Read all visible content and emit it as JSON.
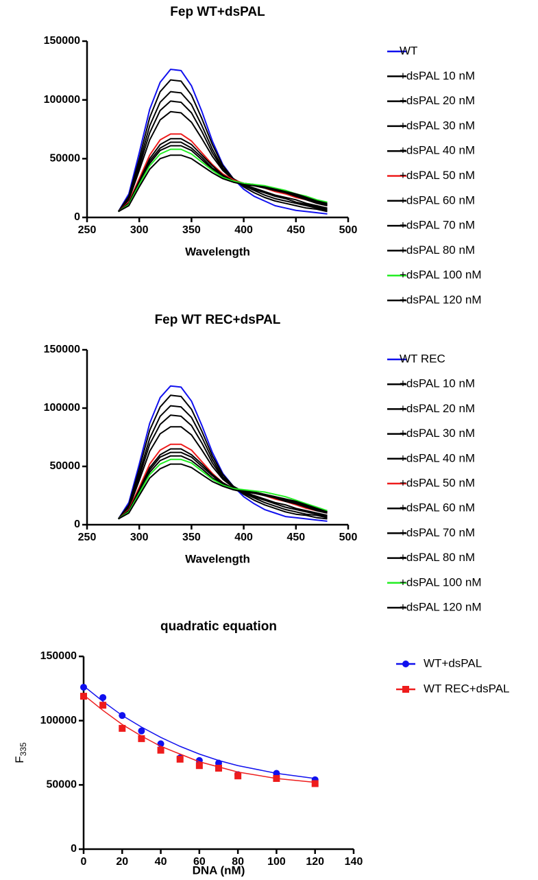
{
  "chart_data": [
    {
      "type": "line",
      "title": "Fep WT+dsPAL",
      "x_label": "Wavelength",
      "xlim": [
        250,
        500
      ],
      "xticks": [
        250,
        300,
        350,
        400,
        450,
        500
      ],
      "ylim": [
        0,
        150000
      ],
      "yticks": [
        0,
        50000,
        100000,
        150000
      ],
      "x": [
        280,
        290,
        300,
        310,
        320,
        330,
        340,
        350,
        360,
        370,
        380,
        390,
        400,
        410,
        420,
        430,
        440,
        450,
        460,
        470,
        480
      ],
      "series": [
        {
          "name": "WT",
          "color": "#1010ee",
          "values": [
            5000,
            20000,
            55000,
            92000,
            115000,
            126000,
            125000,
            112000,
            90000,
            65000,
            45000,
            33000,
            24000,
            18000,
            14000,
            10000,
            8000,
            6000,
            5000,
            4000,
            3000
          ]
        },
        {
          "name": "+dsPAL 10 nM",
          "color": "#000000",
          "values": [
            5000,
            18000,
            50000,
            85000,
            107000,
            117000,
            116000,
            104000,
            84000,
            62000,
            44000,
            33000,
            26000,
            21000,
            17000,
            14000,
            12000,
            10000,
            8000,
            7000,
            5000
          ]
        },
        {
          "name": "+dsPAL 20 nM",
          "color": "#000000",
          "values": [
            5000,
            17000,
            46000,
            78000,
            98000,
            107000,
            106000,
            96000,
            78000,
            58000,
            42000,
            33000,
            27000,
            23000,
            19000,
            16000,
            14000,
            12000,
            10000,
            8000,
            6000
          ]
        },
        {
          "name": "+dsPAL 30 nM",
          "color": "#000000",
          "values": [
            5000,
            16000,
            43000,
            72000,
            91000,
            99000,
            98000,
            89000,
            73000,
            55000,
            41000,
            33000,
            28000,
            24000,
            21000,
            18000,
            16000,
            13000,
            11000,
            9000,
            7000
          ]
        },
        {
          "name": "+dsPAL 40 nM",
          "color": "#000000",
          "values": [
            5000,
            15000,
            40000,
            66000,
            83000,
            90000,
            89000,
            81000,
            67000,
            52000,
            40000,
            32000,
            28000,
            25000,
            22000,
            19000,
            17000,
            15000,
            12000,
            10000,
            8000
          ]
        },
        {
          "name": "+dsPAL 50 nM",
          "color": "#ee1c1c",
          "values": [
            5000,
            13000,
            33000,
            53000,
            66000,
            71000,
            71000,
            65000,
            55000,
            45000,
            37000,
            32000,
            29000,
            27000,
            25000,
            22000,
            20000,
            17000,
            15000,
            12000,
            10000
          ]
        },
        {
          "name": "+dsPAL 60 nM",
          "color": "#000000",
          "values": [
            5000,
            12000,
            31000,
            50000,
            62000,
            67000,
            67000,
            62000,
            53000,
            44000,
            36000,
            31000,
            29000,
            27000,
            25000,
            23000,
            21000,
            18000,
            15000,
            12000,
            10000
          ]
        },
        {
          "name": "+dsPAL 70 nM",
          "color": "#000000",
          "values": [
            5000,
            12000,
            30000,
            48000,
            59000,
            64000,
            64000,
            59000,
            51000,
            42000,
            36000,
            31000,
            29000,
            27000,
            26000,
            24000,
            21000,
            19000,
            16000,
            13000,
            11000
          ]
        },
        {
          "name": "+dsPAL 80 nM",
          "color": "#000000",
          "values": [
            5000,
            11000,
            29000,
            46000,
            57000,
            61000,
            61000,
            57000,
            49000,
            41000,
            35000,
            31000,
            29000,
            28000,
            26000,
            24000,
            22000,
            19000,
            16000,
            14000,
            11000
          ]
        },
        {
          "name": "+dsPAL 100 nM",
          "color": "#22ee22",
          "values": [
            5000,
            11000,
            28000,
            44000,
            54000,
            58000,
            58000,
            54000,
            47000,
            40000,
            34000,
            31000,
            29000,
            28000,
            27000,
            25000,
            23000,
            20000,
            18000,
            15000,
            13000
          ]
        },
        {
          "name": "+dsPAL 120 nM",
          "color": "#000000",
          "values": [
            5000,
            10000,
            26000,
            41000,
            50000,
            53000,
            53000,
            50000,
            44000,
            38000,
            33000,
            30000,
            28000,
            27000,
            26000,
            24000,
            22000,
            20000,
            17000,
            14000,
            12000
          ]
        }
      ]
    },
    {
      "type": "line",
      "title": "Fep WT REC+dsPAL",
      "x_label": "Wavelength",
      "xlim": [
        250,
        500
      ],
      "xticks": [
        250,
        300,
        350,
        400,
        450,
        500
      ],
      "ylim": [
        0,
        150000
      ],
      "yticks": [
        0,
        50000,
        100000,
        150000
      ],
      "x": [
        280,
        290,
        300,
        310,
        320,
        330,
        340,
        350,
        360,
        370,
        380,
        390,
        400,
        410,
        420,
        430,
        440,
        450,
        460,
        470,
        480
      ],
      "series": [
        {
          "name": "WT REC",
          "color": "#1010ee",
          "values": [
            5000,
            19000,
            52000,
            87000,
            109000,
            119000,
            118000,
            106000,
            85000,
            62000,
            44000,
            33000,
            24000,
            18000,
            13000,
            10000,
            7000,
            6000,
            5000,
            4000,
            3000
          ]
        },
        {
          "name": "+dsPAL 10 nM",
          "color": "#000000",
          "values": [
            5000,
            17000,
            48000,
            81000,
            101000,
            111000,
            110000,
            99000,
            80000,
            59000,
            43000,
            33000,
            26000,
            21000,
            17000,
            14000,
            11000,
            9000,
            8000,
            6000,
            5000
          ]
        },
        {
          "name": "+dsPAL 20 nM",
          "color": "#000000",
          "values": [
            5000,
            16000,
            44000,
            74000,
            93000,
            102000,
            101000,
            92000,
            75000,
            56000,
            41000,
            33000,
            27000,
            23000,
            19000,
            16000,
            13000,
            11000,
            9000,
            8000,
            6000
          ]
        },
        {
          "name": "+dsPAL 30 nM",
          "color": "#000000",
          "values": [
            5000,
            15000,
            41000,
            69000,
            86000,
            94000,
            93000,
            85000,
            70000,
            53000,
            40000,
            33000,
            28000,
            24000,
            21000,
            18000,
            15000,
            13000,
            11000,
            9000,
            7000
          ]
        },
        {
          "name": "+dsPAL 40 nM",
          "color": "#000000",
          "values": [
            5000,
            14000,
            38000,
            63000,
            78000,
            84000,
            84000,
            77000,
            64000,
            50000,
            39000,
            32000,
            28000,
            25000,
            22000,
            19000,
            17000,
            14000,
            12000,
            10000,
            8000
          ]
        },
        {
          "name": "+dsPAL 50 nM",
          "color": "#ee1c1c",
          "values": [
            5000,
            13000,
            32000,
            52000,
            64000,
            69000,
            69000,
            64000,
            54000,
            44000,
            36000,
            31000,
            29000,
            27000,
            25000,
            22000,
            20000,
            17000,
            14000,
            12000,
            10000
          ]
        },
        {
          "name": "+dsPAL 60 nM",
          "color": "#000000",
          "values": [
            5000,
            12000,
            30000,
            49000,
            60000,
            65000,
            65000,
            60000,
            52000,
            43000,
            36000,
            31000,
            29000,
            27000,
            25000,
            23000,
            20000,
            18000,
            15000,
            12000,
            10000
          ]
        },
        {
          "name": "+dsPAL 70 nM",
          "color": "#000000",
          "values": [
            5000,
            12000,
            29000,
            47000,
            58000,
            62000,
            62000,
            58000,
            50000,
            42000,
            35000,
            31000,
            29000,
            28000,
            26000,
            24000,
            21000,
            18000,
            16000,
            13000,
            11000
          ]
        },
        {
          "name": "+dsPAL 80 nM",
          "color": "#000000",
          "values": [
            5000,
            11000,
            28000,
            45000,
            55000,
            59000,
            59000,
            55000,
            48000,
            40000,
            35000,
            31000,
            29000,
            28000,
            26000,
            24000,
            22000,
            19000,
            16000,
            14000,
            11000
          ]
        },
        {
          "name": "+dsPAL 100 nM",
          "color": "#22ee22",
          "values": [
            5000,
            11000,
            27000,
            43000,
            52000,
            56000,
            56000,
            53000,
            46000,
            39000,
            34000,
            31000,
            30000,
            29000,
            28000,
            26000,
            24000,
            21000,
            18000,
            15000,
            12000
          ]
        },
        {
          "name": "+dsPAL 120 nM",
          "color": "#000000",
          "values": [
            5000,
            10000,
            25000,
            40000,
            48000,
            52000,
            52000,
            49000,
            43000,
            37000,
            33000,
            30000,
            28000,
            27000,
            26000,
            24000,
            22000,
            20000,
            17000,
            14000,
            11000
          ]
        }
      ]
    },
    {
      "type": "scatter",
      "title": "quadratic equation",
      "x_label": "DNA (nM)",
      "y_label": "F",
      "y_label_sub": "335",
      "xlim": [
        0,
        140
      ],
      "xticks": [
        0,
        20,
        40,
        60,
        80,
        100,
        120,
        140
      ],
      "ylim": [
        0,
        150000
      ],
      "yticks": [
        0,
        50000,
        100000,
        150000
      ],
      "x": [
        0,
        10,
        20,
        30,
        40,
        50,
        60,
        70,
        80,
        100,
        120
      ],
      "series": [
        {
          "name": "WT+dsPAL",
          "color": "#1010ee",
          "marker": "circle",
          "values": [
            126000,
            118000,
            104000,
            92000,
            82000,
            71000,
            69000,
            67000,
            58000,
            59000,
            54000
          ],
          "fit": [
            127000,
            115000,
            104000,
            95000,
            87000,
            80000,
            74000,
            69000,
            65000,
            59000,
            55000
          ]
        },
        {
          "name": "WT REC+dsPAL",
          "color": "#ee1c1c",
          "marker": "square",
          "values": [
            119000,
            112000,
            94000,
            86000,
            77000,
            70000,
            65000,
            63000,
            57000,
            55000,
            51000
          ],
          "fit": [
            120000,
            108000,
            97000,
            88000,
            80000,
            74000,
            68000,
            64000,
            60000,
            55000,
            52000
          ]
        }
      ]
    }
  ]
}
